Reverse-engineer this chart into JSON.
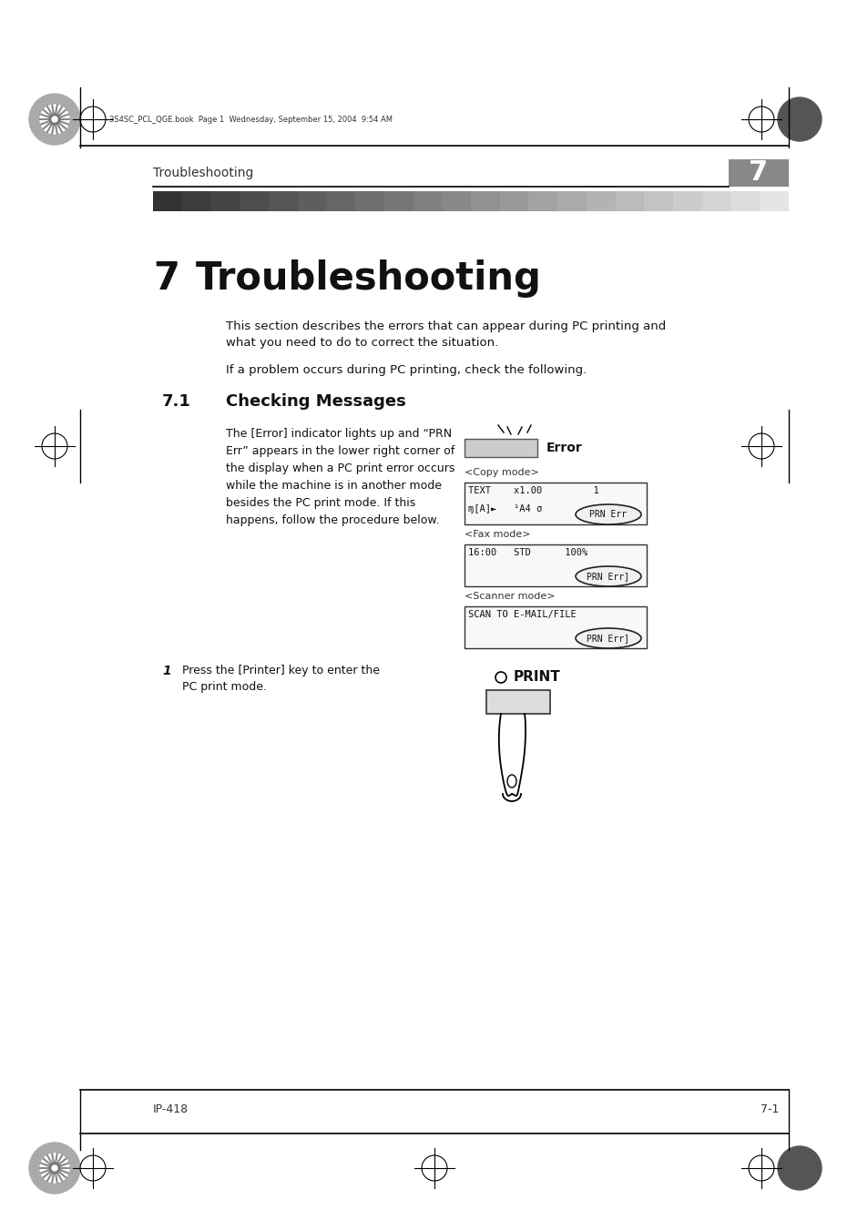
{
  "page_bg": "#ffffff",
  "header_file_text": "3S4SC_PCL_QGE.book  Page 1  Wednesday, September 15, 2004  9:54 AM",
  "header_section": "Troubleshooting",
  "header_number": "7",
  "chapter_number": "7",
  "chapter_title": "Troubleshooting",
  "intro_text1": "This section describes the errors that can appear during PC printing and\nwhat you need to do to correct the situation.",
  "intro_text2": "If a problem occurs during PC printing, check the following.",
  "section_num": "7.1",
  "section_title": "Checking Messages",
  "body_text": "The [Error] indicator lights up and “PRN\nErr” appears in the lower right corner of\nthe display when a PC print error occurs\nwhile the machine is in another mode\nbesides the PC print mode. If this\nhappens, follow the procedure below.",
  "error_label": "Error",
  "copy_mode_label": "<Copy mode>",
  "fax_mode_label": "<Fax mode>",
  "scanner_mode_label": "<Scanner mode>",
  "step1_num": "1",
  "step1_text": "Press the [Printer] key to enter the\nPC print mode.",
  "print_label": "PRINT",
  "footer_left": "IP-418",
  "footer_right": "7-1"
}
